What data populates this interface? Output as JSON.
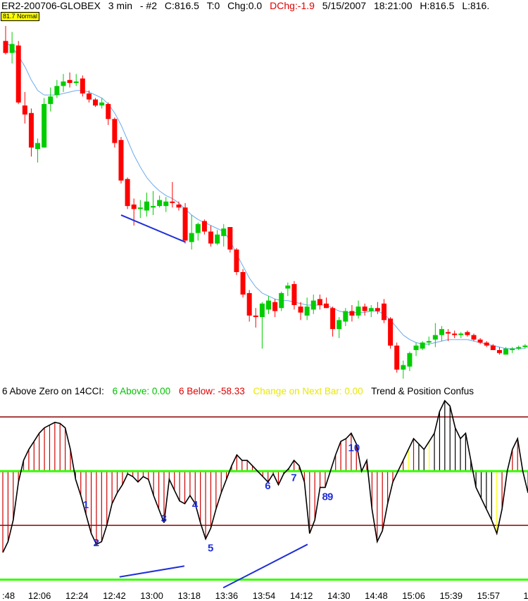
{
  "header": {
    "symbol": "ER2-200706-GLOBEX",
    "interval": "3 min",
    "instance": "- #2",
    "close": "C:816.5",
    "ticks": "T:0",
    "change": "Chg:0.0",
    "dchange": "DChg:-1.9",
    "date": "5/15/2007",
    "time": "18:21:00",
    "high": "H:816.5",
    "low": "L:816."
  },
  "badge": "81.7 Normal",
  "indicator_label": {
    "title": "6 Above Zero on 14CCI:",
    "above": "6 Above: 0.00",
    "below": "6 Below: -58.33",
    "change": "Change on Next Bar: 0.00",
    "trend": "Trend & Position Confus"
  },
  "colors": {
    "up_candle": "#00cc00",
    "down_candle": "#ff0000",
    "moving_average": "#6aa9ee",
    "trendline": "#1f2fd8",
    "wave_label": "#1f2fd8",
    "cci_line": "#000000",
    "hist_down": "#cc0000",
    "hist_up": "#000000",
    "hist_flat": "#ffff00",
    "level_line": "#8b0000",
    "zero_line": "#33ff00",
    "header_red": "#e00000",
    "above_green": "#00c000",
    "change_yellow": "#e8e800"
  },
  "chart_data": [
    {
      "type": "candlestick",
      "title": "ER2-200706-GLOBEX 3 min",
      "x_labels": [
        ":48",
        "12:06",
        "12:24",
        "12:42",
        "13:00",
        "13:18",
        "13:36",
        "13:54",
        "14:12",
        "14:30",
        "14:48",
        "15:06",
        "15:39",
        "15:57",
        "1"
      ],
      "candles": [
        {
          "o": 829.8,
          "h": 830.8,
          "l": 828.9,
          "c": 829.0
        },
        {
          "o": 829.0,
          "h": 830.4,
          "l": 828.3,
          "c": 829.6
        },
        {
          "o": 829.5,
          "h": 829.8,
          "l": 825.6,
          "c": 825.7
        },
        {
          "o": 825.5,
          "h": 826.4,
          "l": 824.3,
          "c": 824.9
        },
        {
          "o": 825.0,
          "h": 825.3,
          "l": 822.1,
          "c": 822.7
        },
        {
          "o": 822.6,
          "h": 823.3,
          "l": 821.7,
          "c": 823.0
        },
        {
          "o": 822.7,
          "h": 826.0,
          "l": 822.7,
          "c": 825.6
        },
        {
          "o": 825.6,
          "h": 826.7,
          "l": 825.1,
          "c": 826.1
        },
        {
          "o": 826.2,
          "h": 827.2,
          "l": 826.0,
          "c": 826.8
        },
        {
          "o": 826.8,
          "h": 827.6,
          "l": 826.4,
          "c": 827.1
        },
        {
          "o": 827.2,
          "h": 827.7,
          "l": 826.7,
          "c": 827.0
        },
        {
          "o": 827.0,
          "h": 827.6,
          "l": 826.8,
          "c": 827.1
        },
        {
          "o": 827.3,
          "h": 827.5,
          "l": 826.1,
          "c": 826.3
        },
        {
          "o": 826.3,
          "h": 826.5,
          "l": 825.7,
          "c": 825.9
        },
        {
          "o": 825.9,
          "h": 826.0,
          "l": 825.4,
          "c": 825.5
        },
        {
          "o": 825.5,
          "h": 826.0,
          "l": 825.3,
          "c": 825.7
        },
        {
          "o": 825.6,
          "h": 825.7,
          "l": 824.2,
          "c": 824.6
        },
        {
          "o": 824.6,
          "h": 824.7,
          "l": 822.7,
          "c": 823.0
        },
        {
          "o": 823.2,
          "h": 823.4,
          "l": 820.3,
          "c": 820.5
        },
        {
          "o": 820.6,
          "h": 820.7,
          "l": 818.6,
          "c": 818.8
        },
        {
          "o": 818.9,
          "h": 819.3,
          "l": 817.5,
          "c": 818.6
        },
        {
          "o": 818.6,
          "h": 819.2,
          "l": 818.0,
          "c": 818.7
        },
        {
          "o": 818.5,
          "h": 819.7,
          "l": 818.1,
          "c": 819.1
        },
        {
          "o": 818.7,
          "h": 819.8,
          "l": 818.2,
          "c": 818.8
        },
        {
          "o": 818.8,
          "h": 819.5,
          "l": 818.7,
          "c": 819.2
        },
        {
          "o": 818.8,
          "h": 819.4,
          "l": 818.4,
          "c": 819.1
        },
        {
          "o": 819.1,
          "h": 820.4,
          "l": 818.7,
          "c": 819.0
        },
        {
          "o": 818.9,
          "h": 819.1,
          "l": 818.5,
          "c": 818.7
        },
        {
          "o": 818.7,
          "h": 819.0,
          "l": 816.3,
          "c": 816.5
        },
        {
          "o": 816.4,
          "h": 818.2,
          "l": 815.9,
          "c": 817.0
        },
        {
          "o": 817.0,
          "h": 817.7,
          "l": 816.5,
          "c": 817.6
        },
        {
          "o": 817.8,
          "h": 817.9,
          "l": 816.9,
          "c": 817.1
        },
        {
          "o": 817.1,
          "h": 817.5,
          "l": 816.1,
          "c": 816.3
        },
        {
          "o": 816.3,
          "h": 817.2,
          "l": 816.2,
          "c": 816.9
        },
        {
          "o": 816.8,
          "h": 817.6,
          "l": 816.1,
          "c": 817.3
        },
        {
          "o": 817.4,
          "h": 817.4,
          "l": 815.7,
          "c": 815.9
        },
        {
          "o": 815.9,
          "h": 816.0,
          "l": 814.2,
          "c": 814.4
        },
        {
          "o": 814.4,
          "h": 814.6,
          "l": 812.7,
          "c": 812.9
        },
        {
          "o": 813.0,
          "h": 813.2,
          "l": 811.1,
          "c": 811.5
        },
        {
          "o": 811.5,
          "h": 812.0,
          "l": 810.7,
          "c": 811.4
        },
        {
          "o": 811.4,
          "h": 812.4,
          "l": 809.3,
          "c": 812.3
        },
        {
          "o": 811.9,
          "h": 812.8,
          "l": 811.6,
          "c": 812.5
        },
        {
          "o": 812.4,
          "h": 812.6,
          "l": 811.4,
          "c": 811.8
        },
        {
          "o": 812.0,
          "h": 813.1,
          "l": 811.8,
          "c": 813.0
        },
        {
          "o": 813.3,
          "h": 813.7,
          "l": 812.8,
          "c": 813.5
        },
        {
          "o": 813.6,
          "h": 813.8,
          "l": 811.9,
          "c": 812.2
        },
        {
          "o": 812.1,
          "h": 812.4,
          "l": 811.2,
          "c": 811.7
        },
        {
          "o": 811.5,
          "h": 812.7,
          "l": 811.2,
          "c": 812.1
        },
        {
          "o": 811.9,
          "h": 812.9,
          "l": 811.6,
          "c": 812.5
        },
        {
          "o": 812.6,
          "h": 812.9,
          "l": 811.9,
          "c": 812.2
        },
        {
          "o": 812.3,
          "h": 812.7,
          "l": 812.0,
          "c": 812.0
        },
        {
          "o": 812.0,
          "h": 812.1,
          "l": 810.1,
          "c": 810.6
        },
        {
          "o": 810.6,
          "h": 811.4,
          "l": 810.0,
          "c": 811.2
        },
        {
          "o": 811.1,
          "h": 812.0,
          "l": 810.8,
          "c": 811.8
        },
        {
          "o": 811.8,
          "h": 812.2,
          "l": 811.1,
          "c": 811.5
        },
        {
          "o": 811.5,
          "h": 812.5,
          "l": 811.3,
          "c": 812.1
        },
        {
          "o": 812.1,
          "h": 812.3,
          "l": 811.5,
          "c": 811.8
        },
        {
          "o": 811.8,
          "h": 812.2,
          "l": 811.4,
          "c": 812.0
        },
        {
          "o": 812.0,
          "h": 812.4,
          "l": 811.6,
          "c": 811.8
        },
        {
          "o": 812.3,
          "h": 812.6,
          "l": 811.0,
          "c": 811.2
        },
        {
          "o": 811.3,
          "h": 811.4,
          "l": 809.3,
          "c": 809.5
        },
        {
          "o": 809.5,
          "h": 809.7,
          "l": 807.7,
          "c": 807.9
        },
        {
          "o": 807.9,
          "h": 808.5,
          "l": 807.3,
          "c": 808.2
        },
        {
          "o": 808.1,
          "h": 809.1,
          "l": 807.8,
          "c": 809.0
        },
        {
          "o": 809.2,
          "h": 809.7,
          "l": 808.8,
          "c": 809.5
        },
        {
          "o": 809.3,
          "h": 809.8,
          "l": 809.2,
          "c": 809.7
        },
        {
          "o": 809.7,
          "h": 810.1,
          "l": 809.5,
          "c": 809.8
        },
        {
          "o": 809.9,
          "h": 811.0,
          "l": 809.4,
          "c": 810.2
        },
        {
          "o": 810.2,
          "h": 810.8,
          "l": 809.8,
          "c": 810.6
        },
        {
          "o": 810.4,
          "h": 810.6,
          "l": 809.8,
          "c": 810.3
        },
        {
          "o": 810.3,
          "h": 810.5,
          "l": 810.0,
          "c": 810.2
        },
        {
          "o": 810.2,
          "h": 810.4,
          "l": 810.0,
          "c": 810.3
        },
        {
          "o": 810.4,
          "h": 810.5,
          "l": 810.1,
          "c": 810.2
        },
        {
          "o": 810.2,
          "h": 810.3,
          "l": 809.8,
          "c": 809.9
        },
        {
          "o": 809.9,
          "h": 810.0,
          "l": 809.6,
          "c": 809.7
        },
        {
          "o": 809.7,
          "h": 809.8,
          "l": 809.4,
          "c": 809.5
        },
        {
          "o": 809.5,
          "h": 809.6,
          "l": 809.2,
          "c": 809.2
        },
        {
          "o": 809.2,
          "h": 809.4,
          "l": 808.9,
          "c": 809.0
        },
        {
          "o": 808.9,
          "h": 809.4,
          "l": 808.9,
          "c": 809.3
        },
        {
          "o": 809.2,
          "h": 809.4,
          "l": 809.0,
          "c": 809.3
        },
        {
          "o": 809.3,
          "h": 809.5,
          "l": 809.2,
          "c": 809.4
        },
        {
          "o": 809.4,
          "h": 809.6,
          "l": 809.3,
          "c": 809.5
        }
      ],
      "moving_average": [
        829.7,
        829.4,
        828.8,
        828.1,
        827.2,
        826.5,
        826.2,
        826.2,
        826.2,
        826.3,
        826.4,
        826.5,
        826.5,
        826.4,
        826.2,
        826.0,
        825.6,
        825.0,
        824.2,
        823.2,
        822.2,
        821.4,
        820.7,
        820.2,
        819.8,
        819.5,
        819.3,
        819.0,
        818.6,
        818.2,
        817.9,
        817.7,
        817.5,
        817.3,
        817.1,
        816.5,
        815.6,
        814.8,
        814.0,
        813.4,
        813.0,
        812.8,
        812.6,
        812.5,
        812.5,
        812.4,
        812.3,
        812.2,
        812.2,
        812.2,
        812.2,
        812.0,
        811.8,
        811.7,
        811.7,
        811.7,
        811.7,
        811.8,
        811.8,
        811.6,
        811.2,
        810.7,
        810.2,
        809.9,
        809.7,
        809.6,
        809.6,
        809.7,
        809.8,
        809.9,
        809.9,
        809.9,
        809.9,
        809.8,
        809.7,
        809.6,
        809.5,
        809.4,
        809.3,
        809.3,
        809.3,
        809.3
      ],
      "trendlines": [
        {
          "from": [
            18,
            818.2
          ],
          "to": [
            28,
            816.4
          ]
        }
      ],
      "y_range": [
        807.0,
        831.5
      ]
    },
    {
      "type": "line",
      "title": "6 Above Zero on 14CCI",
      "cci": [
        -150,
        -130,
        -90,
        -20,
        20,
        40,
        55,
        70,
        80,
        85,
        90,
        88,
        80,
        40,
        -15,
        -45,
        -80,
        -115,
        -135,
        -130,
        -100,
        -60,
        -40,
        -25,
        -5,
        -10,
        -20,
        -10,
        -15,
        -45,
        -70,
        -95,
        -15,
        -35,
        -55,
        -60,
        -45,
        -60,
        -95,
        -125,
        -105,
        -70,
        -40,
        -15,
        10,
        30,
        20,
        20,
        10,
        0,
        -10,
        -20,
        -5,
        -25,
        -5,
        5,
        20,
        10,
        -20,
        -115,
        -90,
        -30,
        -30,
        0,
        30,
        55,
        60,
        70,
        50,
        0,
        20,
        -70,
        -130,
        -110,
        -60,
        -20,
        0,
        20,
        40,
        60,
        50,
        40,
        55,
        70,
        110,
        130,
        120,
        80,
        60,
        70,
        20,
        -30,
        -50,
        -70,
        -90,
        -115,
        -70,
        0,
        40,
        60,
        0,
        -40
      ],
      "hist_state": [
        "down",
        "down",
        "down",
        "down",
        "down",
        "down",
        "down",
        "down",
        "down",
        "down",
        "down",
        "down",
        "down",
        "down",
        "down",
        "down",
        "down",
        "down",
        "down",
        "down",
        "down",
        "down",
        "down",
        "down",
        "down",
        "down",
        "down",
        "down",
        "down",
        "down",
        "down",
        "down",
        "down",
        "down",
        "down",
        "down",
        "down",
        "down",
        "down",
        "down",
        "down",
        "down",
        "down",
        "down",
        "down",
        "down",
        "down",
        "down",
        "down",
        "down",
        "down",
        "down",
        "down",
        "down",
        "down",
        "down",
        "down",
        "down",
        "down",
        "down",
        "down",
        "down",
        "down",
        "down",
        "down",
        "down",
        "down",
        "down",
        "down",
        "down",
        "down",
        "down",
        "down",
        "down",
        "down",
        "down",
        "down",
        "down",
        "flat",
        "down",
        "up",
        "up",
        "flat",
        "up",
        "up",
        "up",
        "up",
        "up",
        "up",
        "up",
        "up",
        "up",
        "up",
        "up",
        "up",
        "flat",
        "down",
        "down",
        "down",
        "down",
        "down",
        "down"
      ],
      "levels": {
        "upper": 100,
        "zero": 0,
        "lower": -100,
        "bottom": -200
      },
      "wave_labels": [
        {
          "label": "1",
          "i": 12
        },
        {
          "label": "2",
          "i": 14
        },
        {
          "label": "3",
          "i": 24
        },
        {
          "label": "4",
          "i": 29
        },
        {
          "label": "5",
          "i": 31
        },
        {
          "label": "6",
          "i": 40
        },
        {
          "label": "7",
          "i": 44
        },
        {
          "label": "8",
          "i": 49
        },
        {
          "label": "9",
          "i": 50
        },
        {
          "label": "10",
          "i": 53
        }
      ],
      "trendlines": [
        {
          "from": [
            18,
            -195
          ],
          "to": [
            28,
            -175
          ]
        },
        {
          "from": [
            34,
            -215
          ],
          "to": [
            47,
            -135
          ]
        }
      ],
      "y_range": [
        -220,
        130
      ]
    }
  ]
}
